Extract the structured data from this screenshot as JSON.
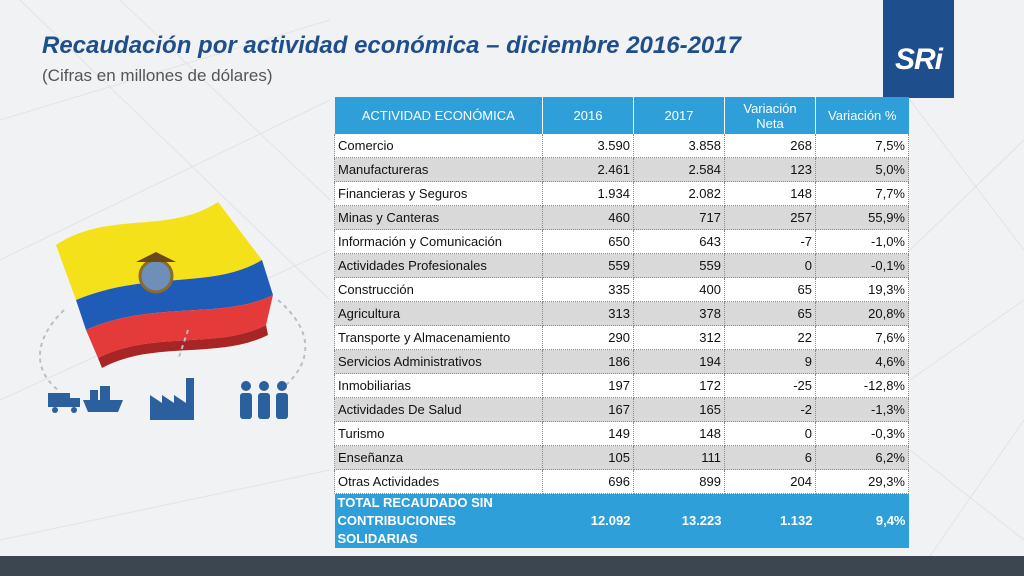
{
  "slide": {
    "title": "Recaudación por actividad económica – diciembre 2016-2017",
    "subtitle": "(Cifras en millones de dólares)",
    "logo_text": "SRi"
  },
  "colors": {
    "title": "#1f4e8c",
    "header_bg": "#2e9fd8",
    "logo_bg": "#1f4e8c",
    "row_alt": "#d9d9d9",
    "flag_yellow": "#f5e11a",
    "flag_blue": "#1f5cb8",
    "flag_red": "#e53a3a",
    "icon_blue": "#2b5f9e"
  },
  "icons": [
    "logistics-truck-ship-icon",
    "factory-icon",
    "people-group-icon",
    "ecuador-flag-icon"
  ],
  "table": {
    "headers": [
      "ACTIVIDAD ECONÓMICA",
      "2016",
      "2017",
      "Variación Neta",
      "Variación %"
    ],
    "rows": [
      [
        "Comercio",
        "3.590",
        "3.858",
        "268",
        "7,5%"
      ],
      [
        "Manufactureras",
        "2.461",
        "2.584",
        "123",
        "5,0%"
      ],
      [
        "Financieras y Seguros",
        "1.934",
        "2.082",
        "148",
        "7,7%"
      ],
      [
        "Minas y Canteras",
        "460",
        "717",
        "257",
        "55,9%"
      ],
      [
        "Información y Comunicación",
        "650",
        "643",
        "-7",
        "-1,0%"
      ],
      [
        "Actividades Profesionales",
        "559",
        "559",
        "0",
        "-0,1%"
      ],
      [
        "Construcción",
        "335",
        "400",
        "65",
        "19,3%"
      ],
      [
        "Agricultura",
        "313",
        "378",
        "65",
        "20,8%"
      ],
      [
        "Transporte y Almacenamiento",
        "290",
        "312",
        "22",
        "7,6%"
      ],
      [
        "Servicios Administrativos",
        "186",
        "194",
        "9",
        "4,6%"
      ],
      [
        "Inmobiliarias",
        "197",
        "172",
        "-25",
        "-12,8%"
      ],
      [
        "Actividades De Salud",
        "167",
        "165",
        "-2",
        "-1,3%"
      ],
      [
        "Turismo",
        "149",
        "148",
        "0",
        "-0,3%"
      ],
      [
        "Enseñanza",
        "105",
        "111",
        "6",
        "6,2%"
      ],
      [
        "Otras Actividades",
        "696",
        "899",
        "204",
        "29,3%"
      ]
    ],
    "total": [
      "TOTAL RECAUDADO SIN CONTRIBUCIONES SOLIDARIAS",
      "12.092",
      "13.223",
      "1.132",
      "9,4%"
    ]
  }
}
